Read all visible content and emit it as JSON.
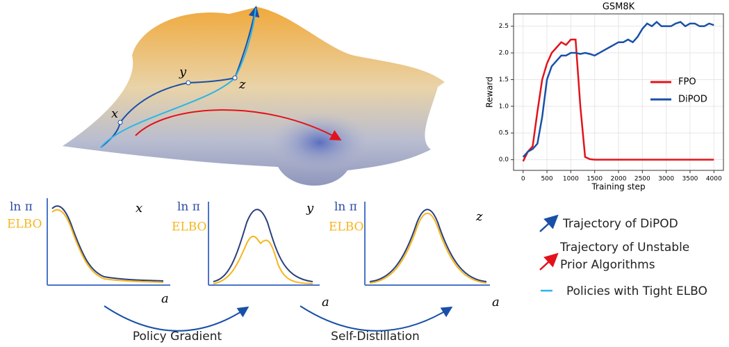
{
  "chart_data": {
    "type": "line",
    "title": "GSM8K",
    "x_label": "Training step",
    "y_label": "Reward",
    "x": [
      0,
      100,
      200,
      300,
      400,
      500,
      600,
      700,
      800,
      900,
      1000,
      1100,
      1200,
      1300,
      1400,
      1500,
      1600,
      1700,
      1800,
      1900,
      2000,
      2100,
      2200,
      2300,
      2400,
      2500,
      2600,
      2700,
      2800,
      2900,
      3000,
      3100,
      3200,
      3300,
      3400,
      3500,
      3600,
      3700,
      3800,
      3900,
      4000
    ],
    "series": [
      {
        "name": "FPO",
        "color": "#e3121a",
        "values": [
          -0.03,
          0.15,
          0.25,
          0.9,
          1.5,
          1.8,
          2.0,
          2.1,
          2.2,
          2.15,
          2.25,
          2.25,
          1.0,
          0.05,
          0.01,
          0.0,
          0.0,
          0.0,
          0.0,
          0.0,
          0.0,
          0.0,
          0.0,
          0.0,
          0.0,
          0.0,
          0.0,
          0.0,
          0.0,
          0.0,
          0.0,
          0.0,
          0.0,
          0.0,
          0.0,
          0.0,
          0.0,
          0.0,
          0.0,
          0.0,
          0.0
        ]
      },
      {
        "name": "DiPOD",
        "color": "#1850a8",
        "values": [
          0.05,
          0.15,
          0.2,
          0.3,
          0.8,
          1.5,
          1.75,
          1.85,
          1.95,
          1.95,
          2.0,
          2.0,
          1.98,
          2.0,
          1.98,
          1.95,
          2.0,
          2.05,
          2.1,
          2.15,
          2.2,
          2.2,
          2.25,
          2.2,
          2.3,
          2.45,
          2.55,
          2.5,
          2.58,
          2.5,
          2.5,
          2.5,
          2.55,
          2.58,
          2.5,
          2.55,
          2.55,
          2.5,
          2.5,
          2.55,
          2.52
        ]
      }
    ],
    "xlim": [
      -200,
      4200
    ],
    "ylim": [
      -0.2,
      2.73
    ],
    "xticks": [
      0,
      500,
      1000,
      1500,
      2000,
      2500,
      3000,
      3500,
      4000
    ],
    "yticks": [
      {
        "value": 0,
        "label": "0.0"
      },
      {
        "value": 0.5,
        "label": "0.5"
      },
      {
        "value": 1,
        "label": "1.0"
      },
      {
        "value": 1.5,
        "label": "1.5"
      },
      {
        "value": 2,
        "label": "2.0"
      },
      {
        "value": 2.5,
        "label": "2.5"
      }
    ],
    "grid": true,
    "legend": "right"
  },
  "surface": {
    "points": [
      "x",
      "y",
      "z"
    ]
  },
  "panels": [
    {
      "ylabel": "ln π",
      "ylabel2": "ELBO",
      "state": "x",
      "xlabel": "a"
    },
    {
      "ylabel": "ln π",
      "ylabel2": "ELBO",
      "state": "y",
      "xlabel": "a"
    },
    {
      "ylabel": "ln π",
      "ylabel2": "ELBO",
      "state": "z",
      "xlabel": "a"
    }
  ],
  "transitions": [
    "Policy Gradient",
    "Self-Distillation"
  ],
  "legend": {
    "dipod": "Trajectory of DiPOD",
    "unstable": [
      "Trajectory of Unstable",
      "Prior Algorithms"
    ],
    "tight": "Policies with Tight ELBO"
  }
}
